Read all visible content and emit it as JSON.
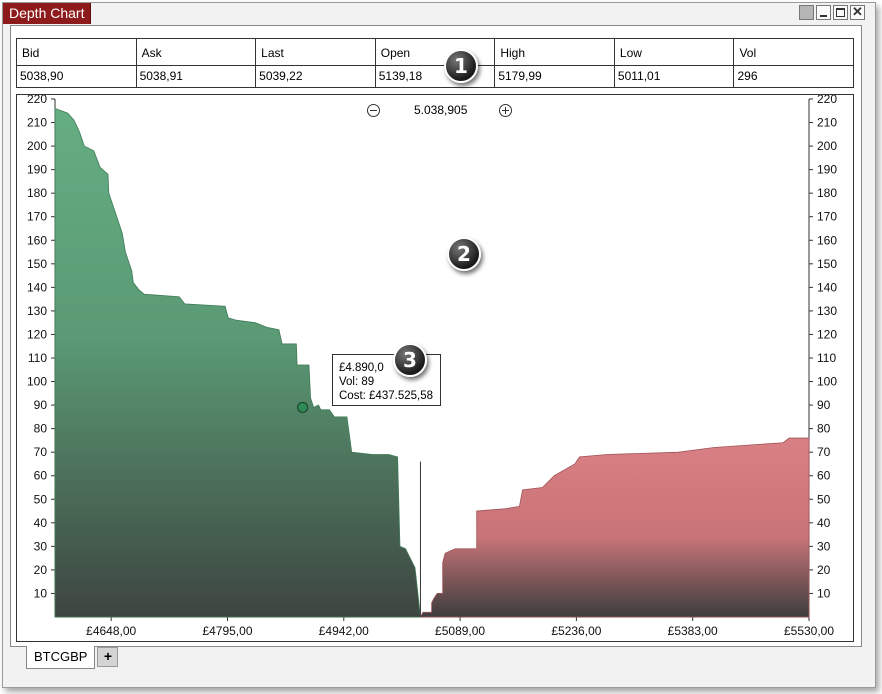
{
  "window": {
    "title": "Depth Chart"
  },
  "quote": {
    "headers": [
      "Bid",
      "Ask",
      "Last",
      "Open",
      "High",
      "Low",
      "Vol"
    ],
    "values": [
      "5038,90",
      "5038,91",
      "5039,22",
      "5139,18",
      "5179,99",
      "5011,01",
      "296"
    ]
  },
  "zoom": {
    "value": "5.038,905"
  },
  "badges": [
    "1",
    "2",
    "3"
  ],
  "tooltip": {
    "price": "£4.890,0",
    "vol": "Vol: 89",
    "cost": "Cost: £437.525,58"
  },
  "tabs": [
    {
      "label": "BTCGBP"
    }
  ],
  "add_tab_label": "+",
  "chart_data": {
    "type": "area",
    "xlabel": "",
    "ylabel": "",
    "xlim": [
      4577,
      5530
    ],
    "ylim": [
      0,
      220
    ],
    "x_ticks": [
      4648,
      4795,
      4942,
      5089,
      5236,
      5383,
      5530
    ],
    "x_tick_labels": [
      "£4648,00",
      "£4795,00",
      "£4942,00",
      "£5089,00",
      "£5236,00",
      "£5383,00",
      "£5530,00"
    ],
    "y_ticks": [
      10,
      20,
      30,
      40,
      50,
      60,
      70,
      80,
      90,
      100,
      110,
      120,
      130,
      140,
      150,
      160,
      170,
      180,
      190,
      200,
      210,
      220
    ],
    "mid_price": 5038.905,
    "series": [
      {
        "side": "bid",
        "color": "#65ad83",
        "points": [
          [
            4577,
            216
          ],
          [
            4593,
            214
          ],
          [
            4601,
            211
          ],
          [
            4608,
            206
          ],
          [
            4614,
            200
          ],
          [
            4626,
            198
          ],
          [
            4634,
            191
          ],
          [
            4644,
            188
          ],
          [
            4645,
            180
          ],
          [
            4662,
            163
          ],
          [
            4666,
            155
          ],
          [
            4671,
            150
          ],
          [
            4674,
            147
          ],
          [
            4676,
            142
          ],
          [
            4683,
            139
          ],
          [
            4690,
            137
          ],
          [
            4693,
            137
          ],
          [
            4734,
            136
          ],
          [
            4741,
            133
          ],
          [
            4792,
            132
          ],
          [
            4796,
            127
          ],
          [
            4807,
            126
          ],
          [
            4830,
            125
          ],
          [
            4845,
            123
          ],
          [
            4860,
            122
          ],
          [
            4864,
            116
          ],
          [
            4869,
            116
          ],
          [
            4882,
            116
          ],
          [
            4883,
            107
          ],
          [
            4898,
            107
          ],
          [
            4900,
            93
          ],
          [
            4904,
            89
          ],
          [
            4910,
            90
          ],
          [
            4913,
            88
          ],
          [
            4924,
            88
          ],
          [
            4930,
            85
          ],
          [
            4946,
            85
          ],
          [
            4952,
            70
          ],
          [
            4978,
            69
          ],
          [
            4999,
            69
          ],
          [
            5010,
            68
          ],
          [
            5013,
            30
          ],
          [
            5020,
            29
          ],
          [
            5026,
            25
          ],
          [
            5032,
            21
          ],
          [
            5034,
            15
          ],
          [
            5038.9,
            0
          ]
        ]
      },
      {
        "side": "ask",
        "color": "#d98084",
        "points": [
          [
            5038.91,
            0
          ],
          [
            5042,
            2
          ],
          [
            5053,
            2
          ],
          [
            5053,
            6
          ],
          [
            5056,
            8
          ],
          [
            5060,
            10
          ],
          [
            5067,
            10
          ],
          [
            5067,
            23
          ],
          [
            5070,
            27
          ],
          [
            5076,
            28
          ],
          [
            5083,
            29
          ],
          [
            5110,
            29
          ],
          [
            5110,
            45
          ],
          [
            5147,
            46
          ],
          [
            5164,
            47
          ],
          [
            5168,
            54
          ],
          [
            5193,
            55
          ],
          [
            5208,
            60
          ],
          [
            5234,
            65
          ],
          [
            5240,
            68
          ],
          [
            5275,
            69
          ],
          [
            5365,
            70
          ],
          [
            5410,
            72
          ],
          [
            5453,
            73
          ],
          [
            5497,
            74
          ],
          [
            5505,
            76
          ],
          [
            5530,
            76
          ]
        ]
      }
    ],
    "highlight_point": {
      "x": 4890,
      "y": 89
    }
  }
}
